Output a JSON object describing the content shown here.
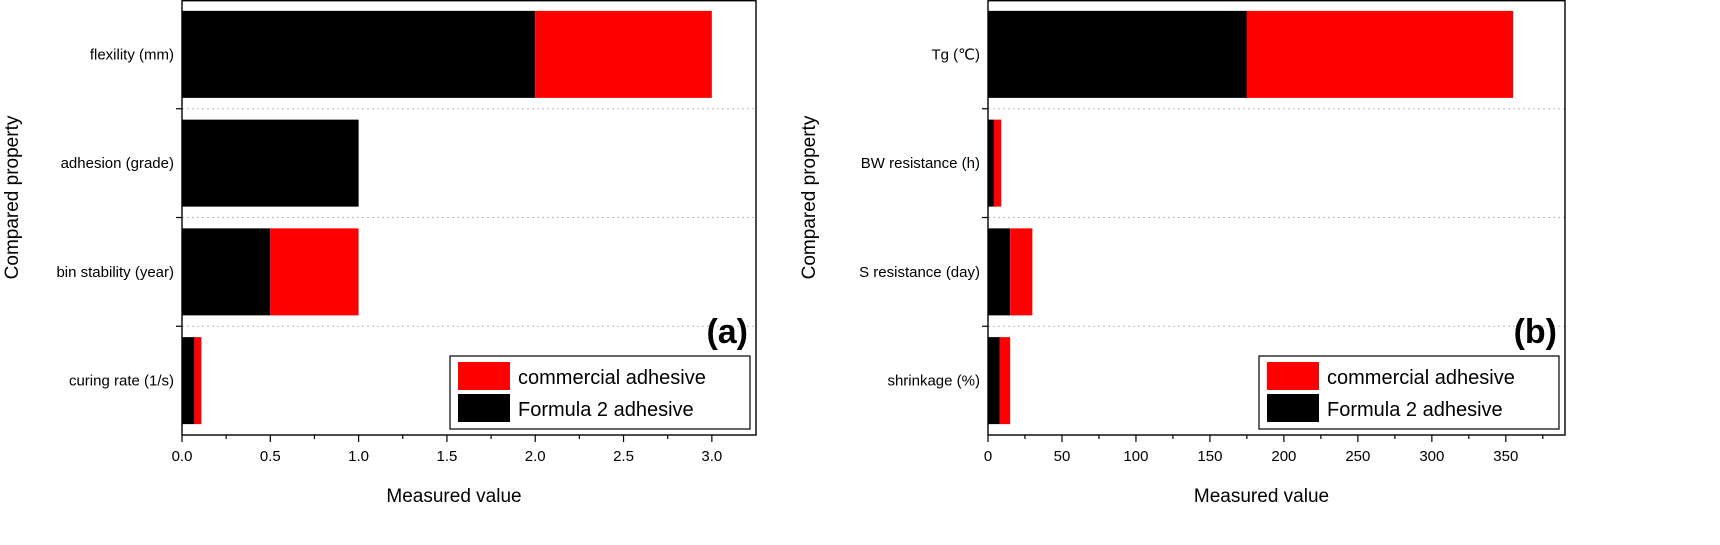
{
  "chart_data": [
    {
      "type": "bar",
      "stacked": true,
      "orientation": "horizontal",
      "panel_label": "(a)",
      "xlabel": "Measured value",
      "ylabel": "Compared property",
      "xlim": [
        0,
        3.25
      ],
      "xticks": [
        0.0,
        0.5,
        1.0,
        1.5,
        2.0,
        2.5,
        3.0
      ],
      "xtick_labels": [
        "0.0",
        "0.5",
        "1.0",
        "1.5",
        "2.0",
        "2.5",
        "3.0"
      ],
      "categories": [
        "flexility (mm)",
        "adhesion (grade)",
        "bin stability (year)",
        "curing rate (1/s)"
      ],
      "series": [
        {
          "name": "Formula 2 adhesive",
          "color": "#000000",
          "values": [
            2.0,
            1.0,
            0.5,
            0.07
          ]
        },
        {
          "name": "commercial adhesive",
          "color": "#ff0000",
          "values": [
            1.0,
            0.0,
            0.5,
            0.04
          ]
        }
      ],
      "legend": {
        "position": "bottom-right",
        "entries": [
          "commercial adhesive",
          "Formula 2 adhesive"
        ]
      }
    },
    {
      "type": "bar",
      "stacked": true,
      "orientation": "horizontal",
      "panel_label": "(b)",
      "xlabel": "Measured value",
      "ylabel": "Compared property",
      "xlim": [
        0,
        390
      ],
      "xticks": [
        0,
        50,
        100,
        150,
        200,
        250,
        300,
        350
      ],
      "xtick_labels": [
        "0",
        "50",
        "100",
        "150",
        "200",
        "250",
        "300",
        "350"
      ],
      "categories": [
        "Tg (℃)",
        "BW resistance (h)",
        "S resistance (day)",
        "shrinkage (%)"
      ],
      "series": [
        {
          "name": "Formula 2 adhesive",
          "color": "#000000",
          "values": [
            175,
            4,
            15,
            8
          ]
        },
        {
          "name": "commercial adhesive",
          "color": "#ff0000",
          "values": [
            180,
            5,
            15,
            7
          ]
        }
      ],
      "legend": {
        "position": "bottom-right",
        "entries": [
          "commercial adhesive",
          "Formula 2 adhesive"
        ]
      }
    }
  ]
}
